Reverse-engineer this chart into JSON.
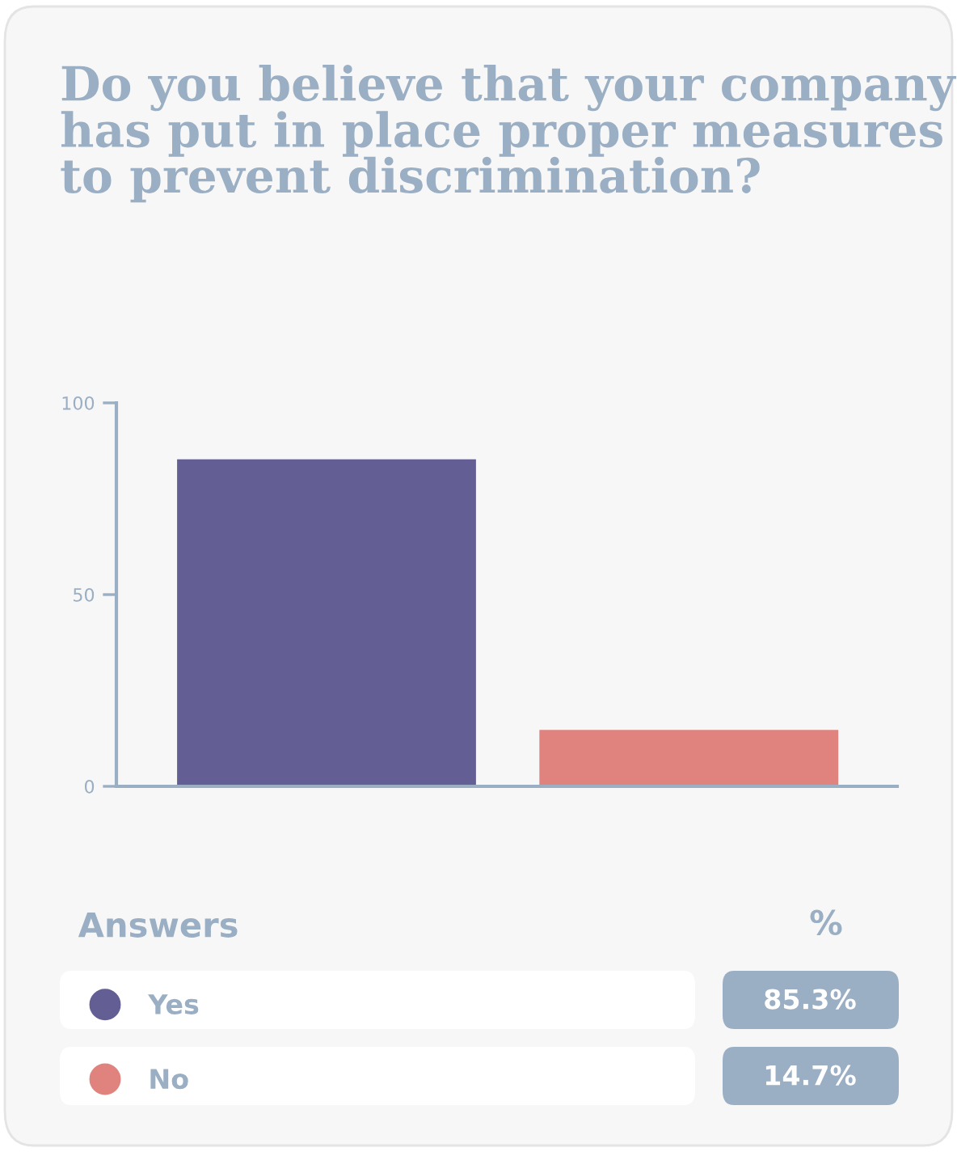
{
  "chart_data": {
    "type": "bar",
    "title": "Do you believe that your company has put in place proper measures to prevent discrimination?",
    "categories": [
      null,
      null
    ],
    "series": [
      {
        "name": "Yes",
        "color": "#635e94",
        "values": [
          85.3,
          null
        ]
      },
      {
        "name": "No",
        "color": "#e0837e",
        "values": [
          null,
          14.7
        ]
      }
    ],
    "ylim": [
      0,
      100
    ],
    "yticks": [
      0,
      50,
      100
    ],
    "tick_labels": "y",
    "legend": "bottom",
    "legend_title": "Answers",
    "annotations": [
      "%",
      "85.3%",
      "14.7%"
    ]
  }
}
